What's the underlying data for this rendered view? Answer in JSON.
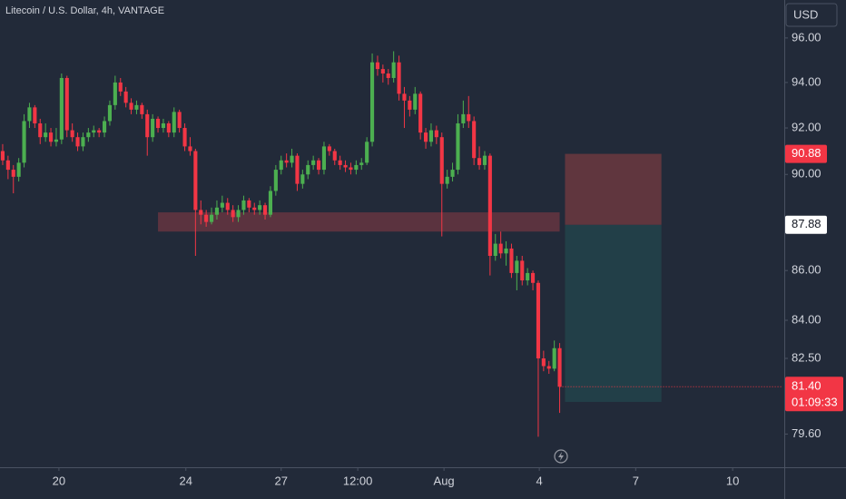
{
  "chart_data": {
    "type": "candlestick",
    "title": "Litecoin / U.S. Dollar, 4h, VANTAGE",
    "currency": "USD",
    "up_color": "#4caf50",
    "down_color": "#f23645",
    "log_scale": true,
    "grid": false,
    "ylim": [
      78.36,
      97.74
    ],
    "yticks": [
      {
        "value": 96,
        "label": "96.00"
      },
      {
        "value": 94,
        "label": "94.00"
      },
      {
        "value": 92,
        "label": "92.00"
      },
      {
        "value": 90,
        "label": "90.00"
      },
      {
        "value": 86,
        "label": "86.00"
      },
      {
        "value": 84,
        "label": "84.00"
      },
      {
        "value": 82.5,
        "label": "82.50"
      },
      {
        "value": 79.6,
        "label": "79.60"
      }
    ],
    "xlim": [
      -0.5,
      145.6
    ],
    "xticks": [
      {
        "value": 10.5,
        "label": "20"
      },
      {
        "value": 34.2,
        "label": "24"
      },
      {
        "value": 52,
        "label": "27"
      },
      {
        "value": 66.3,
        "label": "12:00"
      },
      {
        "value": 82.4,
        "label": "Aug"
      },
      {
        "value": 100.2,
        "label": "4"
      },
      {
        "value": 118.2,
        "label": "7"
      },
      {
        "value": 136.3,
        "label": "10"
      }
    ],
    "zone": {
      "top": 88.4,
      "bottom": 87.6,
      "start": 29,
      "end": 104,
      "color": "#8a3a45"
    },
    "position": {
      "stop": 90.88,
      "entry": 87.88,
      "target": 80.82,
      "start": 105,
      "end": 123,
      "stop_color": "#6b3840",
      "target_color": "#22434b"
    },
    "last_price_label": "81.40",
    "countdown": "01:09:33",
    "ohlc": [
      [
        91.0,
        91.3,
        90.4,
        90.6
      ],
      [
        90.6,
        90.8,
        89.8,
        90.2
      ],
      [
        90.2,
        90.4,
        89.2,
        89.9
      ],
      [
        89.9,
        90.7,
        89.7,
        90.5
      ],
      [
        90.5,
        92.6,
        90.3,
        92.3
      ],
      [
        92.3,
        93.1,
        92.0,
        92.9
      ],
      [
        92.9,
        93.0,
        92.0,
        92.2
      ],
      [
        92.2,
        92.4,
        91.3,
        91.6
      ],
      [
        91.6,
        92.2,
        91.4,
        91.8
      ],
      [
        91.8,
        92.0,
        91.2,
        91.4
      ],
      [
        91.4,
        92.0,
        91.2,
        91.5
      ],
      [
        91.5,
        94.4,
        91.3,
        94.2
      ],
      [
        94.2,
        94.3,
        91.6,
        91.9
      ],
      [
        91.9,
        92.2,
        91.4,
        91.6
      ],
      [
        91.6,
        91.8,
        91.0,
        91.2
      ],
      [
        91.2,
        91.8,
        91.0,
        91.6
      ],
      [
        91.6,
        92.0,
        91.4,
        91.8
      ],
      [
        91.8,
        92.1,
        91.6,
        91.9
      ],
      [
        91.9,
        92.0,
        91.6,
        91.8
      ],
      [
        91.8,
        92.5,
        91.6,
        92.3
      ],
      [
        92.3,
        93.2,
        92.1,
        93.0
      ],
      [
        93.0,
        94.3,
        92.8,
        94.0
      ],
      [
        94.0,
        94.2,
        93.4,
        93.6
      ],
      [
        93.6,
        93.8,
        92.9,
        93.1
      ],
      [
        93.1,
        93.3,
        92.6,
        92.8
      ],
      [
        92.8,
        93.2,
        92.6,
        93.0
      ],
      [
        93.0,
        93.1,
        92.4,
        92.6
      ],
      [
        92.6,
        92.8,
        90.8,
        91.6
      ],
      [
        91.6,
        92.6,
        91.4,
        92.4
      ],
      [
        92.4,
        92.5,
        91.8,
        92.0
      ],
      [
        92.0,
        92.4,
        91.8,
        92.2
      ],
      [
        92.2,
        92.3,
        91.6,
        91.8
      ],
      [
        91.8,
        92.9,
        91.6,
        92.7
      ],
      [
        92.7,
        92.8,
        91.8,
        92.0
      ],
      [
        92.0,
        92.2,
        91.0,
        91.2
      ],
      [
        91.2,
        91.6,
        90.8,
        91.0
      ],
      [
        91.0,
        91.1,
        86.6,
        88.5
      ],
      [
        88.5,
        88.9,
        87.9,
        88.3
      ],
      [
        88.3,
        88.5,
        87.8,
        88.0
      ],
      [
        88.0,
        88.6,
        87.9,
        88.3
      ],
      [
        88.3,
        88.9,
        88.1,
        88.6
      ],
      [
        88.6,
        89.1,
        88.4,
        88.8
      ],
      [
        88.8,
        89.0,
        88.3,
        88.5
      ],
      [
        88.5,
        88.7,
        88.0,
        88.2
      ],
      [
        88.2,
        88.7,
        88.0,
        88.5
      ],
      [
        88.5,
        89.1,
        88.3,
        88.9
      ],
      [
        88.9,
        89.0,
        88.4,
        88.6
      ],
      [
        88.6,
        88.8,
        88.3,
        88.5
      ],
      [
        88.5,
        88.9,
        88.3,
        88.7
      ],
      [
        88.7,
        88.8,
        88.1,
        88.3
      ],
      [
        88.3,
        89.5,
        88.2,
        89.3
      ],
      [
        89.3,
        90.4,
        89.1,
        90.2
      ],
      [
        90.2,
        90.8,
        90.0,
        90.6
      ],
      [
        90.6,
        90.9,
        90.3,
        90.5
      ],
      [
        90.5,
        91.1,
        90.3,
        90.8
      ],
      [
        90.8,
        90.9,
        89.3,
        89.6
      ],
      [
        89.6,
        90.2,
        89.4,
        90.0
      ],
      [
        90.0,
        90.6,
        89.8,
        90.4
      ],
      [
        90.4,
        90.8,
        90.2,
        90.6
      ],
      [
        90.6,
        90.7,
        90.0,
        90.2
      ],
      [
        90.2,
        91.4,
        90.0,
        91.2
      ],
      [
        91.2,
        91.3,
        90.8,
        91.0
      ],
      [
        91.0,
        91.1,
        90.4,
        90.6
      ],
      [
        90.6,
        90.8,
        90.2,
        90.4
      ],
      [
        90.4,
        90.6,
        90.1,
        90.3
      ],
      [
        90.3,
        90.5,
        90.0,
        90.2
      ],
      [
        90.2,
        90.6,
        90.0,
        90.4
      ],
      [
        90.4,
        90.7,
        90.2,
        90.5
      ],
      [
        90.5,
        91.6,
        90.4,
        91.4
      ],
      [
        91.4,
        95.3,
        91.2,
        94.9
      ],
      [
        94.9,
        95.2,
        94.3,
        94.6
      ],
      [
        94.6,
        94.8,
        94.0,
        94.4
      ],
      [
        94.4,
        94.6,
        93.9,
        94.2
      ],
      [
        94.2,
        95.4,
        94.0,
        94.9
      ],
      [
        94.9,
        95.2,
        93.2,
        93.5
      ],
      [
        93.5,
        93.8,
        92.0,
        93.2
      ],
      [
        93.2,
        93.4,
        92.5,
        92.8
      ],
      [
        92.8,
        93.8,
        92.6,
        93.5
      ],
      [
        93.5,
        93.6,
        91.5,
        91.8
      ],
      [
        91.8,
        92.0,
        91.1,
        91.4
      ],
      [
        91.4,
        92.2,
        91.2,
        91.9
      ],
      [
        91.9,
        92.1,
        91.3,
        91.6
      ],
      [
        91.6,
        91.8,
        87.4,
        89.6
      ],
      [
        89.6,
        90.2,
        89.4,
        89.9
      ],
      [
        89.9,
        90.5,
        89.7,
        90.2
      ],
      [
        90.2,
        92.6,
        90.0,
        92.2
      ],
      [
        92.2,
        93.2,
        92.0,
        92.6
      ],
      [
        92.6,
        93.4,
        92.0,
        92.3
      ],
      [
        92.3,
        92.5,
        90.4,
        90.7
      ],
      [
        90.7,
        91.2,
        90.2,
        90.4
      ],
      [
        90.4,
        91.0,
        90.2,
        90.8
      ],
      [
        90.8,
        90.9,
        85.8,
        86.6
      ],
      [
        86.6,
        87.5,
        86.4,
        87.1
      ],
      [
        87.1,
        87.6,
        86.5,
        86.7
      ],
      [
        86.7,
        87.2,
        86.2,
        86.9
      ],
      [
        86.9,
        87.1,
        85.7,
        85.9
      ],
      [
        85.9,
        86.6,
        85.2,
        86.4
      ],
      [
        86.4,
        86.6,
        85.4,
        85.6
      ],
      [
        85.6,
        86.1,
        85.4,
        85.9
      ],
      [
        85.9,
        86.0,
        85.2,
        85.5
      ],
      [
        85.5,
        85.6,
        79.5,
        82.5
      ],
      [
        82.5,
        82.8,
        82.0,
        82.2
      ],
      [
        82.2,
        82.4,
        81.9,
        82.1
      ],
      [
        82.1,
        83.2,
        82.0,
        82.9
      ],
      [
        82.9,
        83.1,
        80.4,
        81.4
      ]
    ]
  }
}
